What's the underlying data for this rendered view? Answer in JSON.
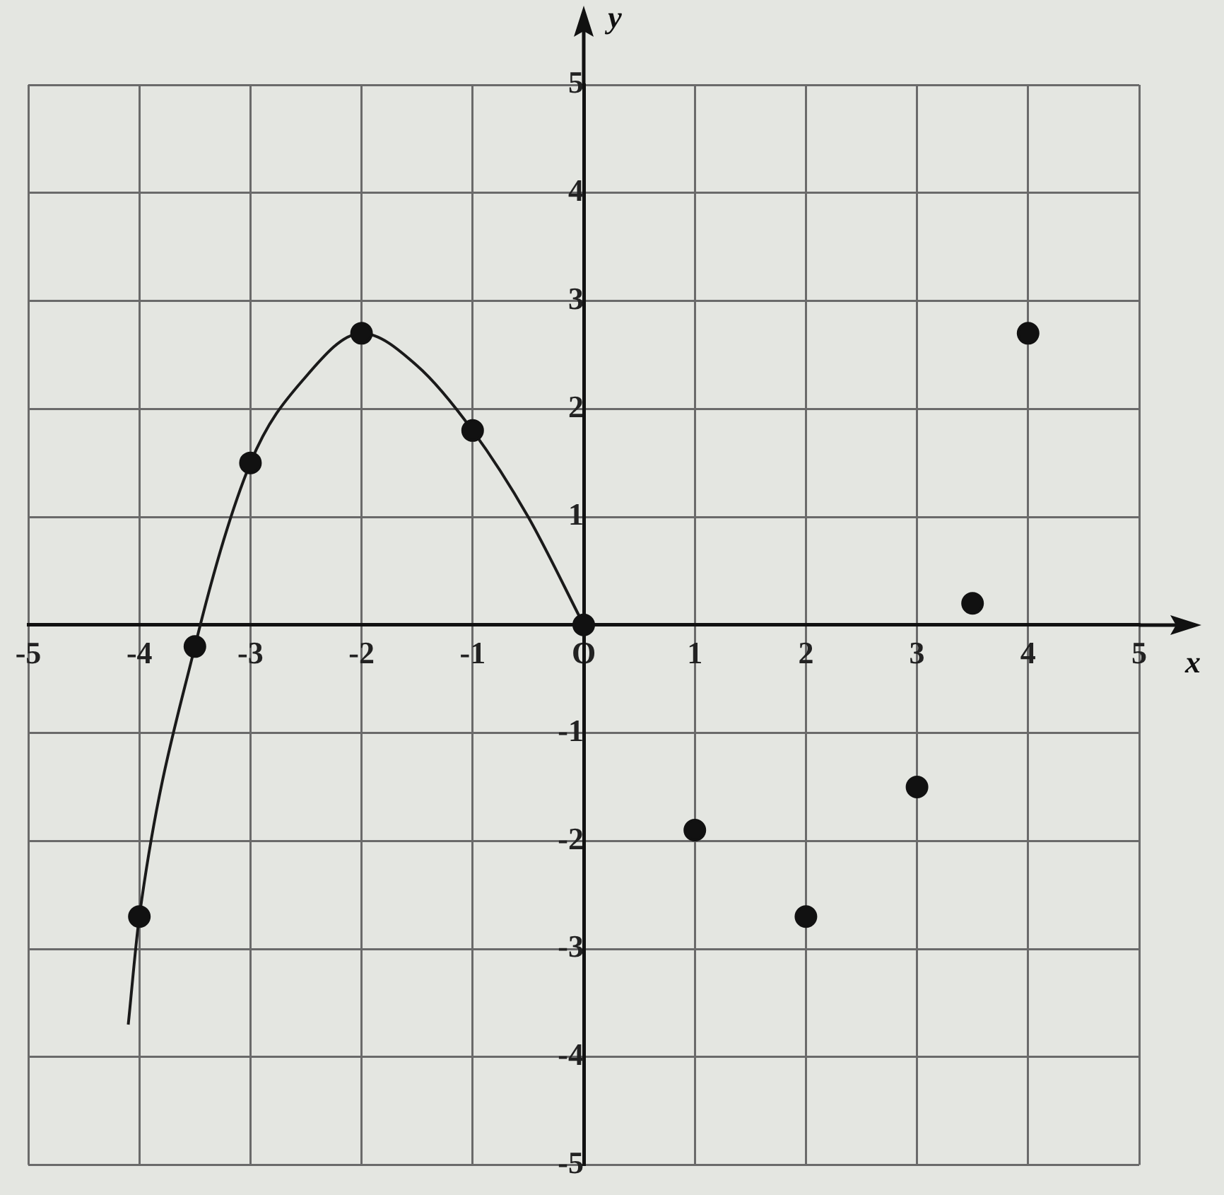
{
  "chart_data": {
    "type": "scatter",
    "xlabel": "x",
    "ylabel": "y",
    "xlim": [
      -5,
      5
    ],
    "ylim": [
      -5,
      5
    ],
    "xticks": [
      -5,
      -4,
      -3,
      -2,
      -1,
      {
        "value": 0,
        "label": "O"
      },
      1,
      2,
      3,
      4,
      5
    ],
    "yticks": [
      -5,
      -4,
      -3,
      -2,
      -1,
      {
        "value": 0,
        "label": null
      },
      1,
      2,
      3,
      4,
      5
    ],
    "grid": true,
    "series": [
      {
        "type": "line",
        "color": "#1a1a1a",
        "marker": "none",
        "x": [
          -4.1,
          -4,
          -3.5,
          -3,
          -2.5,
          -2,
          -1.5,
          -1,
          -0.5,
          0
        ],
        "values": [
          -3.7,
          -2.7,
          -0.2,
          1.5,
          2.3,
          2.7,
          2.4,
          1.8,
          1.0,
          0
        ]
      },
      {
        "type": "scatter",
        "color": "#111111",
        "marker": "circle",
        "x": [
          -4,
          -3.5,
          -3,
          -2,
          -1,
          0,
          1,
          2,
          3,
          3.5,
          4
        ],
        "values": [
          -2.7,
          -0.2,
          1.5,
          2.7,
          1.8,
          0,
          -1.9,
          -2.7,
          -1.5,
          0.2,
          2.7
        ]
      }
    ]
  }
}
